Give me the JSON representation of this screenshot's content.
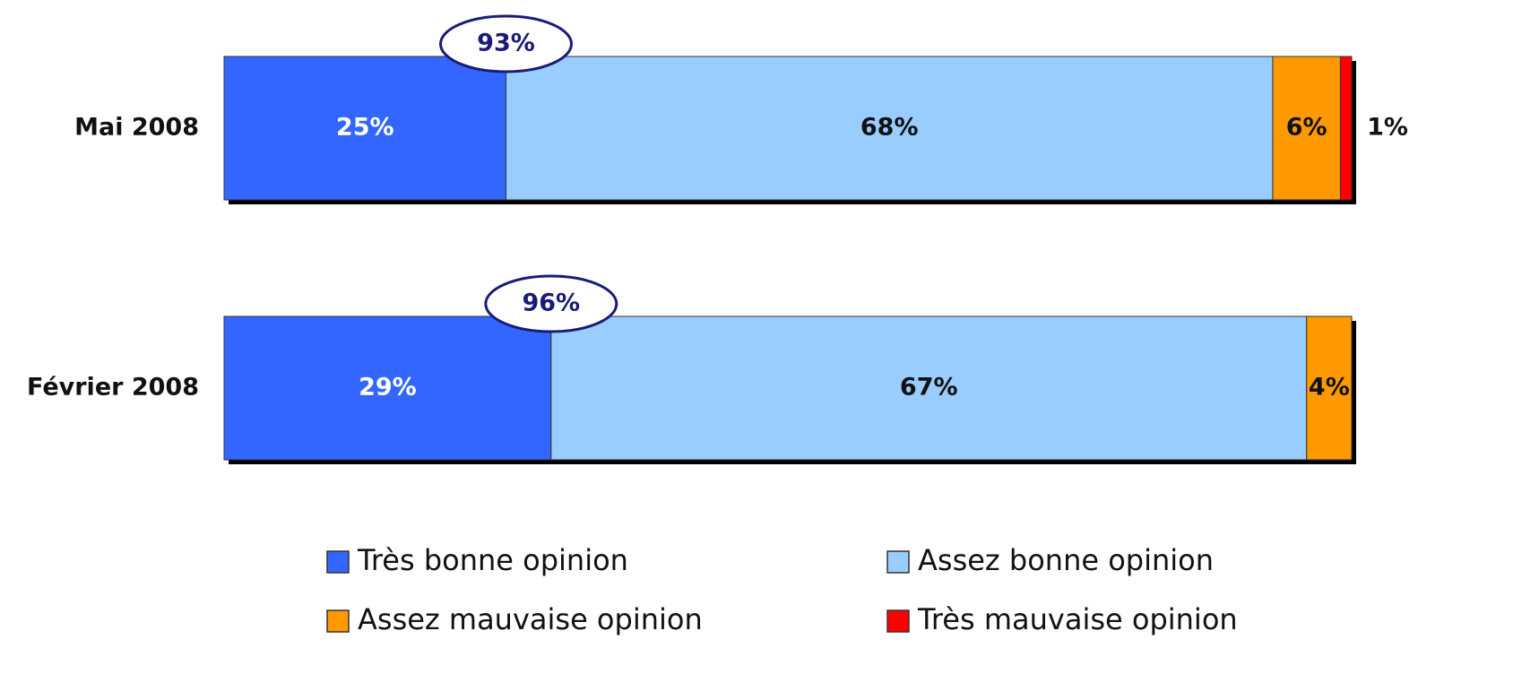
{
  "chart_data": {
    "type": "stacked-bar",
    "categories": [
      "Mai 2008",
      "Février 2008"
    ],
    "xlim": [
      0,
      100
    ],
    "series": [
      {
        "name": "Très bonne opinion",
        "color": "#3366ff",
        "values": [
          25,
          29
        ],
        "value_labels": [
          "25%",
          "29%"
        ]
      },
      {
        "name": "Assez bonne opinion",
        "color": "#99ccff",
        "values": [
          68,
          67
        ],
        "value_labels": [
          "68%",
          "67%"
        ]
      },
      {
        "name": "Assez mauvaise opinion",
        "color": "#ff9900",
        "values": [
          6,
          4
        ],
        "value_labels": [
          "6%",
          "4%"
        ]
      },
      {
        "name": "Très mauvaise opinion",
        "color": "#ff0000",
        "values": [
          1,
          null
        ],
        "value_labels": [
          "1%",
          null
        ]
      }
    ],
    "totals": {
      "values": [
        93,
        96
      ],
      "value_labels": [
        "93%",
        "96%"
      ]
    }
  }
}
